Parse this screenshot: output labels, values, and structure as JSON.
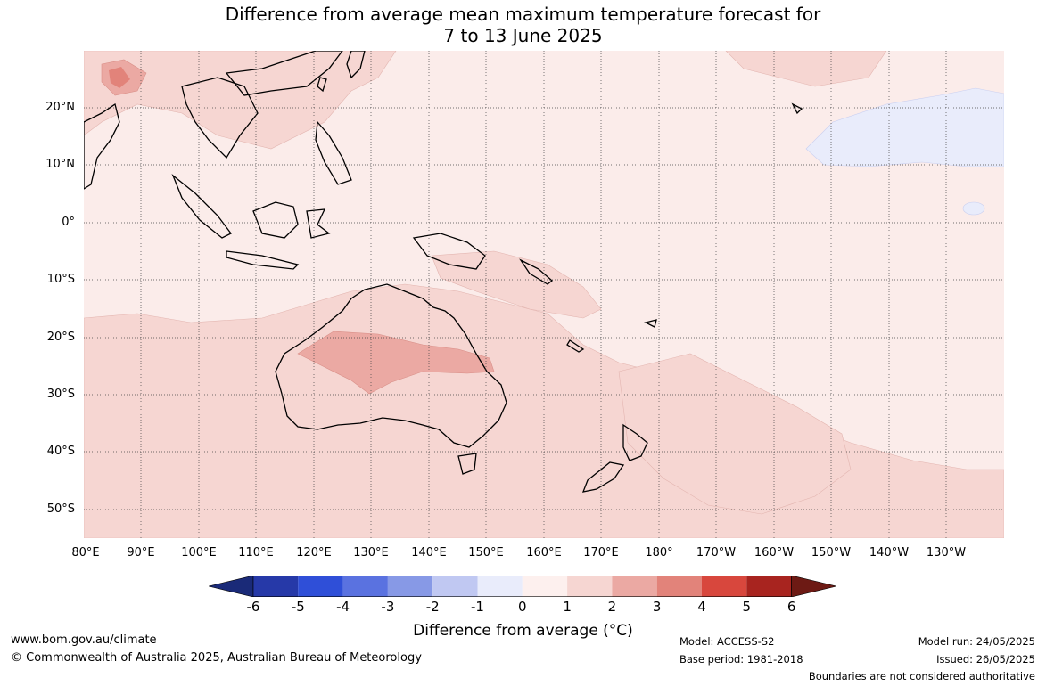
{
  "title": {
    "line1": "Difference from average mean maximum temperature forecast for",
    "line2": "7 to 13 June 2025"
  },
  "map": {
    "lat_labels": [
      "20°N",
      "10°N",
      "0°",
      "10°S",
      "20°S",
      "30°S",
      "40°S",
      "50°S"
    ],
    "lon_labels": [
      "80°E",
      "90°E",
      "100°E",
      "110°E",
      "120°E",
      "130°E",
      "140°E",
      "150°E",
      "160°E",
      "170°E",
      "180°",
      "170°W",
      "160°W",
      "150°W",
      "140°W",
      "130°W"
    ],
    "lon_range": [
      "80°E",
      "120°W"
    ],
    "lat_range": [
      "55°S",
      "30°N"
    ],
    "gridlines": true
  },
  "colorbar": {
    "title": "Difference from average (°C)",
    "ticks": [
      "-6",
      "-5",
      "-4",
      "-3",
      "-2",
      "-1",
      "0",
      "1",
      "2",
      "3",
      "4",
      "5",
      "6"
    ],
    "colors": [
      "#1a2a78",
      "#2639a8",
      "#2f4fd8",
      "#5a72e0",
      "#8799e6",
      "#c0c8f2",
      "#e9ecfb",
      "#fdf0ee",
      "#f6d6d2",
      "#eba9a3",
      "#e2837a",
      "#d8473d",
      "#a8241f",
      "#6d1a14"
    ]
  },
  "footer": {
    "website": "www.bom.gov.au/climate",
    "copyright": "© Commonwealth of Australia 2025, Australian Bureau of Meteorology",
    "model": "Model: ACCESS-S2",
    "base_period": "Base period: 1981-2018",
    "model_run": "Model run: 24/05/2025",
    "issued": "Issued: 26/05/2025",
    "disclaimer": "Boundaries are not considered authoritative"
  }
}
